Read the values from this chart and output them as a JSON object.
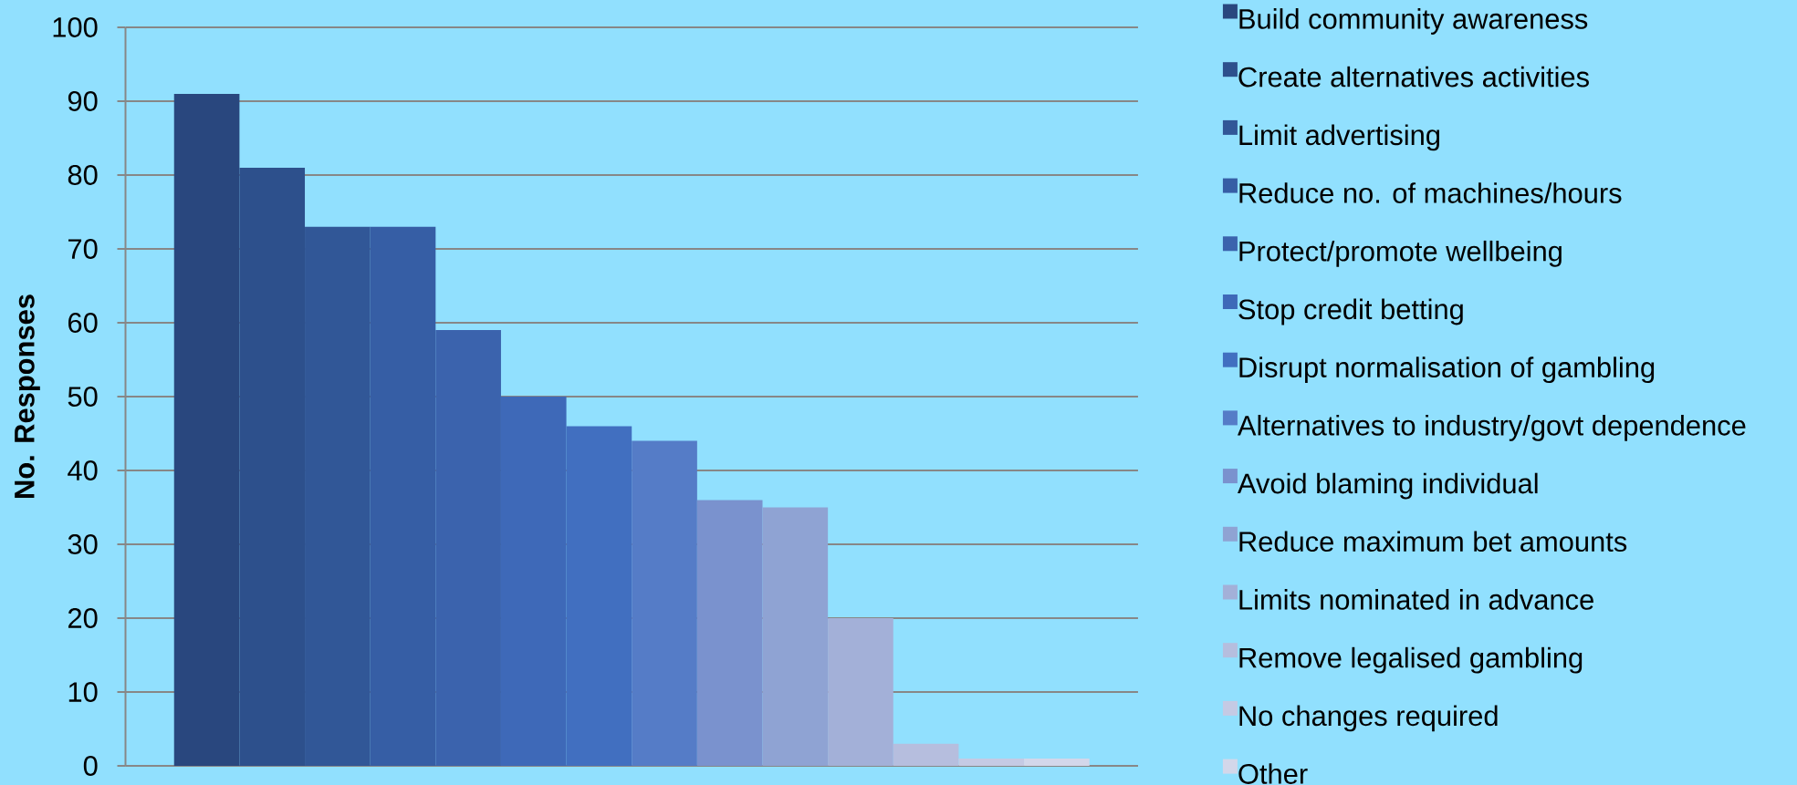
{
  "chart_data": {
    "type": "bar",
    "ylabel": "No. Responses",
    "categories": [
      null
    ],
    "series": [
      {
        "name": "Build community awareness",
        "color": "#29477e",
        "values": [
          91
        ]
      },
      {
        "name": "Create alternatives activities",
        "color": "#2d508c",
        "values": [
          81
        ]
      },
      {
        "name": "Limit advertising",
        "color": "#315797",
        "values": [
          73
        ]
      },
      {
        "name": "Reduce no. of machines/hours",
        "color": "#365ea5",
        "values": [
          73
        ]
      },
      {
        "name": "Protect/promote wellbeing",
        "color": "#3b63ad",
        "values": [
          59
        ]
      },
      {
        "name": "Stop credit betting",
        "color": "#3e69b8",
        "values": [
          50
        ]
      },
      {
        "name": "Disrupt normalisation of gambling",
        "color": "#416fc0",
        "values": [
          46
        ]
      },
      {
        "name": "Alternatives to industry/govt dependence",
        "color": "#557cc7",
        "values": [
          44
        ]
      },
      {
        "name": "Avoid blaming individual",
        "color": "#7a92ce",
        "values": [
          36
        ]
      },
      {
        "name": "Reduce maximum bet amounts",
        "color": "#8fa3d3",
        "values": [
          35
        ]
      },
      {
        "name": "Limits nominated in advance",
        "color": "#a3b0d8",
        "values": [
          20
        ]
      },
      {
        "name": "Remove legalised gambling",
        "color": "#b6bede",
        "values": [
          3
        ]
      },
      {
        "name": "No changes required",
        "color": "#c5cae4",
        "values": [
          1
        ]
      },
      {
        "name": "Other",
        "color": "#d3d7ea",
        "values": [
          1
        ]
      }
    ],
    "ylim": [
      0,
      100
    ],
    "yticks": [
      0,
      10,
      20,
      30,
      40,
      50,
      60,
      70,
      80,
      90,
      100
    ],
    "grid": "y",
    "legend": "right"
  }
}
